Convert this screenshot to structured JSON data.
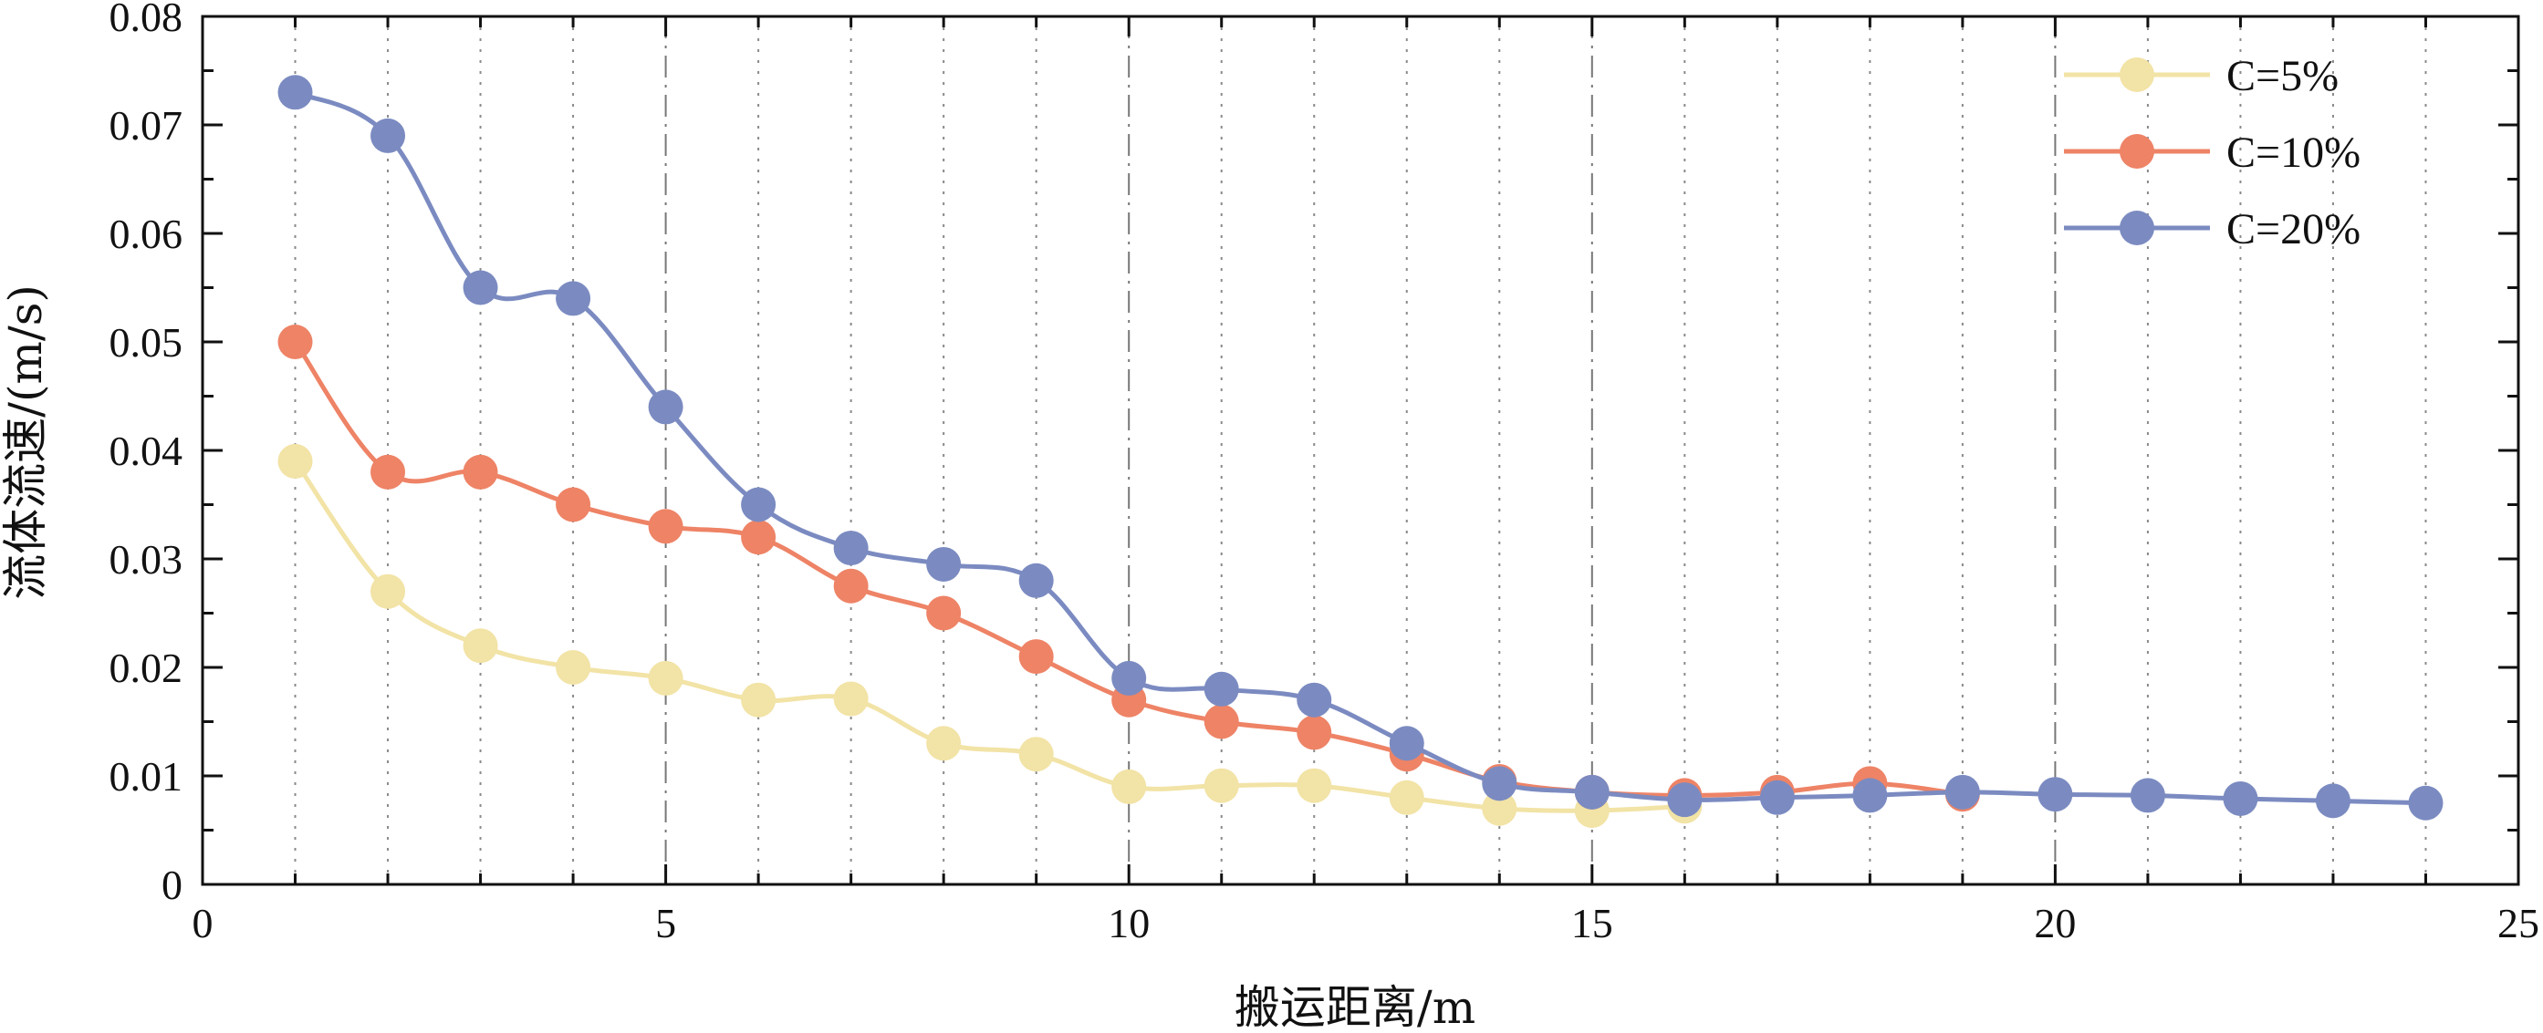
{
  "chart_data": {
    "type": "line",
    "title": "",
    "xlabel": "搬运距离/m",
    "ylabel": "流体流速/(m/s)",
    "xlim": [
      0,
      25
    ],
    "ylim": [
      0,
      0.08
    ],
    "x_ticks": [
      0,
      5,
      10,
      15,
      20,
      25
    ],
    "y_ticks": [
      0,
      0.01,
      0.02,
      0.03,
      0.04,
      0.05,
      0.06,
      0.07,
      0.08
    ],
    "x_tick_labels": [
      "0",
      "5",
      "10",
      "15",
      "20",
      "25"
    ],
    "y_tick_labels": [
      "0",
      "0.01",
      "0.02",
      "0.03",
      "0.04",
      "0.05",
      "0.06",
      "0.07",
      "0.08"
    ],
    "grid": "vertical dotted lines at each integer x, dash-dot at multiples of 5",
    "legend_position": "top-right",
    "series": [
      {
        "name": "C=5%",
        "color": "#F2E3A6",
        "x": [
          1,
          2,
          3,
          4,
          5,
          6,
          7,
          8,
          9,
          10,
          11,
          12,
          13,
          14,
          15,
          16
        ],
        "y": [
          0.039,
          0.027,
          0.022,
          0.02,
          0.019,
          0.017,
          0.0171,
          0.013,
          0.012,
          0.009,
          0.0091,
          0.0091,
          0.008,
          0.007,
          0.0068,
          0.0072
        ]
      },
      {
        "name": "C=10%",
        "color": "#EE8366",
        "x": [
          1,
          2,
          3,
          4,
          5,
          6,
          7,
          8,
          9,
          10,
          11,
          12,
          13,
          14,
          15,
          16,
          17,
          18,
          19
        ],
        "y": [
          0.05,
          0.038,
          0.038,
          0.035,
          0.033,
          0.032,
          0.0275,
          0.025,
          0.021,
          0.017,
          0.015,
          0.014,
          0.012,
          0.0095,
          0.0085,
          0.0082,
          0.0085,
          0.0093,
          0.0083
        ]
      },
      {
        "name": "C=20%",
        "color": "#7B8BC1",
        "x": [
          1,
          2,
          3,
          4,
          5,
          6,
          7,
          8,
          9,
          10,
          11,
          12,
          13,
          14,
          15,
          16,
          17,
          18,
          19,
          20,
          21,
          22,
          23,
          24
        ],
        "y": [
          0.073,
          0.069,
          0.055,
          0.054,
          0.044,
          0.035,
          0.031,
          0.0295,
          0.028,
          0.019,
          0.018,
          0.017,
          0.013,
          0.0093,
          0.0085,
          0.0078,
          0.008,
          0.0082,
          0.0085,
          0.0083,
          0.0082,
          0.0079,
          0.0077,
          0.0075
        ]
      }
    ]
  }
}
